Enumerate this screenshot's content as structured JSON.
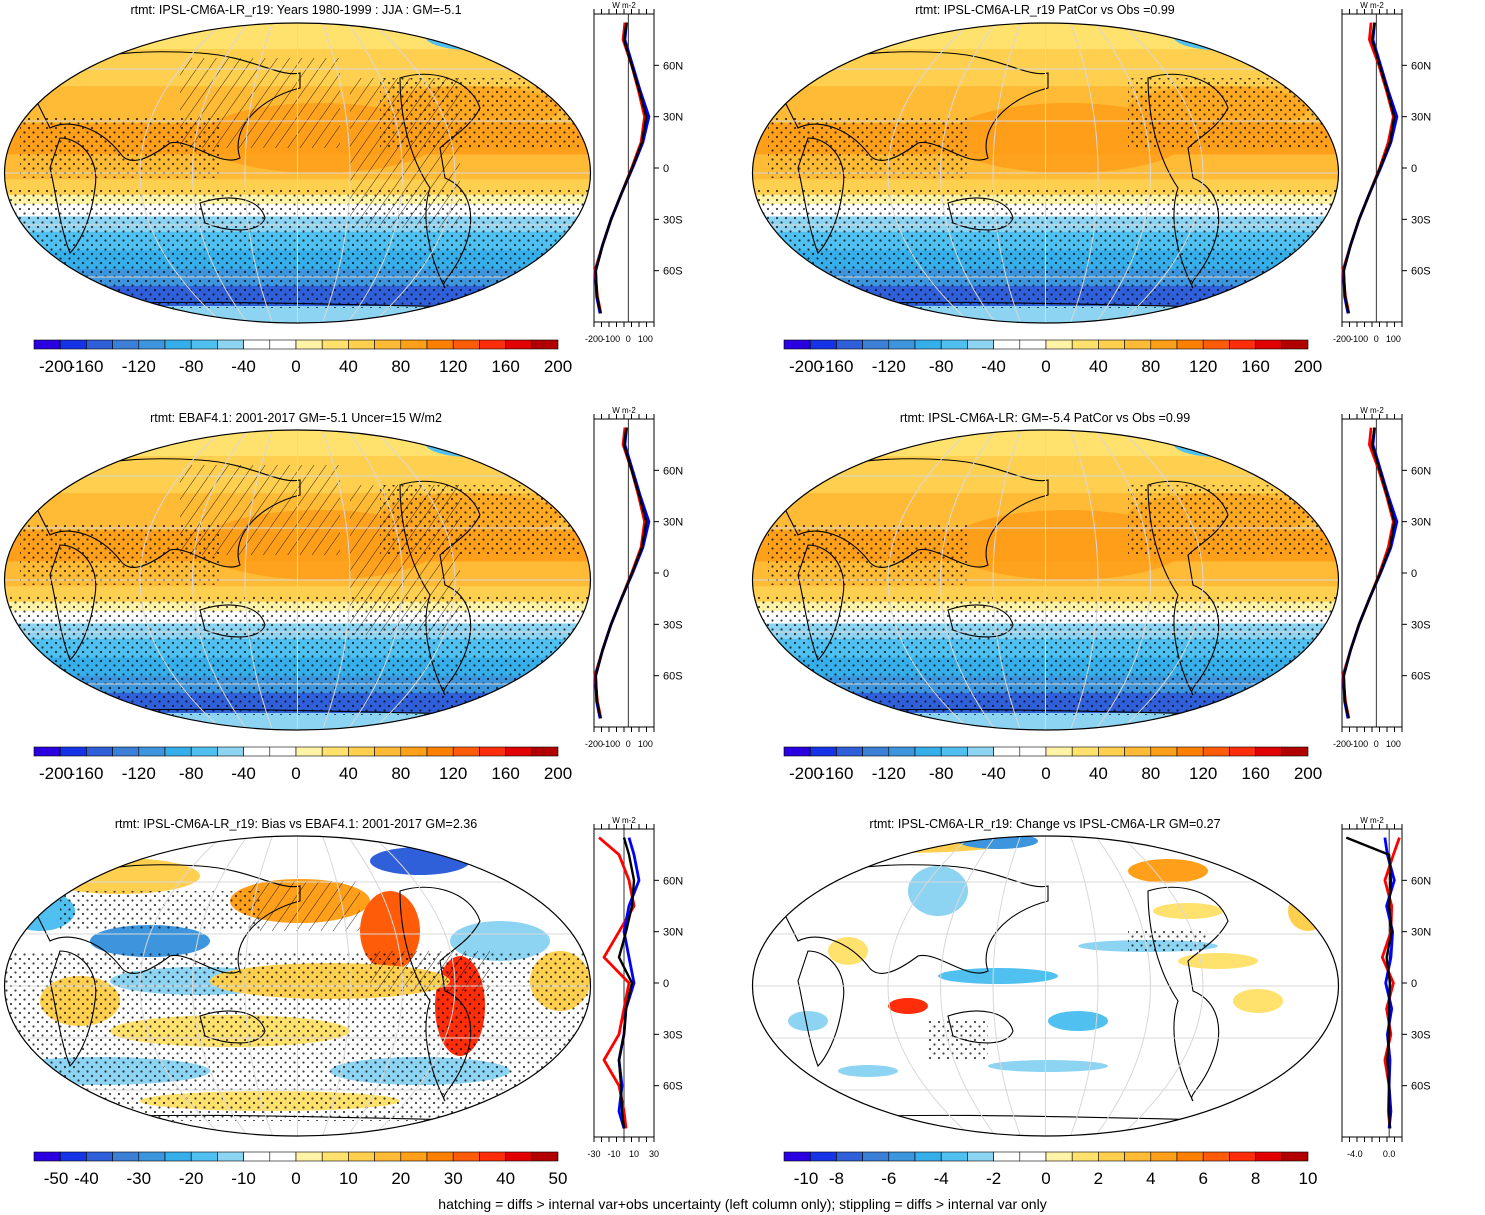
{
  "footnote": "hatching = diffs > internal var+obs uncertainty (left column only); stippling = diffs > internal var only",
  "profile_units": "W m-2",
  "profile_lat_ticks": [
    "60N",
    "30N",
    "0",
    "30S",
    "60S"
  ],
  "colors": {
    "cmap": [
      "#2b00e0",
      "#1634e6",
      "#2f5fd9",
      "#3b7fd6",
      "#3c95dd",
      "#36aee9",
      "#4fc0ef",
      "#8dd4f2",
      "#ffffff",
      "#ffffff",
      "#fff3a8",
      "#ffe16e",
      "#ffcf4f",
      "#ffbb35",
      "#ff9f1a",
      "#ff8000",
      "#ff5c0a",
      "#ff2d0a",
      "#e00000",
      "#b20000"
    ],
    "model": "#ff0000",
    "obs": "#0000ff",
    "ref": "#000000"
  },
  "panels": [
    {
      "id": "p1",
      "title": "rtmt: IPSL-CM6A-LR_r19: Years 1980-1999 : JJA : GM=-5.1",
      "kind": "abs",
      "hatching": true,
      "colorbar_labels": [
        "-200",
        "-160",
        "-120",
        "-80",
        "-40",
        "0",
        "40",
        "80",
        "120",
        "160",
        "200"
      ],
      "profile_ticks": [
        "-200",
        "-100",
        "0",
        "100"
      ]
    },
    {
      "id": "p2",
      "title": "rtmt: IPSL-CM6A-LR_r19 PatCor vs Obs =0.99",
      "kind": "abs",
      "hatching": false,
      "colorbar_labels": [
        "-200",
        "-160",
        "-120",
        "-80",
        "-40",
        "0",
        "40",
        "80",
        "120",
        "160",
        "200"
      ],
      "profile_ticks": [
        "-200",
        "-100",
        "0",
        "100"
      ]
    },
    {
      "id": "p3",
      "title": "rtmt: EBAF4.1: 2001-2017 GM=-5.1 Uncer=15 W/m2",
      "kind": "abs",
      "hatching": true,
      "colorbar_labels": [
        "-200",
        "-160",
        "-120",
        "-80",
        "-40",
        "0",
        "40",
        "80",
        "120",
        "160",
        "200"
      ],
      "profile_ticks": [
        "-200",
        "-100",
        "0",
        "100"
      ]
    },
    {
      "id": "p4",
      "title": "rtmt: IPSL-CM6A-LR: GM=-5.4 PatCor vs Obs =0.99",
      "kind": "abs",
      "hatching": false,
      "colorbar_labels": [
        "-200",
        "-160",
        "-120",
        "-80",
        "-40",
        "0",
        "40",
        "80",
        "120",
        "160",
        "200"
      ],
      "profile_ticks": [
        "-200",
        "-100",
        "0",
        "100"
      ]
    },
    {
      "id": "p5",
      "title": "rtmt: IPSL-CM6A-LR_r19: Bias vs EBAF4.1: 2001-2017 GM=2.36",
      "kind": "bias",
      "hatching": true,
      "colorbar_labels": [
        "-50",
        "-40",
        "-30",
        "-20",
        "-10",
        "0",
        "10",
        "20",
        "30",
        "40",
        "50"
      ],
      "profile_ticks": [
        "-30",
        "-10",
        "10",
        "30"
      ]
    },
    {
      "id": "p6",
      "title": "rtmt: IPSL-CM6A-LR_r19: Change vs IPSL-CM6A-LR GM=0.27",
      "kind": "change",
      "hatching": false,
      "colorbar_labels": [
        "-10",
        "-8",
        "-6",
        "-4",
        "-2",
        "0",
        "2",
        "4",
        "6",
        "8",
        "10"
      ],
      "profile_ticks": [
        "-4.0",
        "0.0"
      ]
    }
  ],
  "chart_data": [
    {
      "type": "heatmap",
      "title": "rtmt: IPSL-CM6A-LR_r19: Years 1980-1999 : JJA : GM=-5.1",
      "colorbar_range": [
        -200,
        200
      ],
      "zonal_profile": {
        "x_range": [
          -200,
          150
        ],
        "lat": [
          85,
          75,
          60,
          45,
          30,
          15,
          0,
          -15,
          -30,
          -45,
          -60,
          -75,
          -85
        ],
        "series": [
          {
            "values": [
              -20,
              -30,
              20,
              60,
              95,
              75,
              20,
              -40,
              -100,
              -150,
              -195,
              -180,
              -160
            ]
          },
          {
            "values": [
              -10,
              -20,
              25,
              70,
              120,
              85,
              25,
              -40,
              -100,
              -150,
              -190,
              -185,
              -165
            ]
          },
          {
            "values": [
              -10,
              -25,
              20,
              65,
              105,
              80,
              22,
              -40,
              -100,
              -150,
              -190,
              -182,
              -162
            ]
          }
        ]
      }
    },
    {
      "type": "heatmap",
      "title": "rtmt: IPSL-CM6A-LR_r19 PatCor vs Obs =0.99",
      "colorbar_range": [
        -200,
        200
      ],
      "zonal_profile": {
        "x_range": [
          -200,
          150
        ],
        "lat": [
          85,
          75,
          60,
          45,
          30,
          15,
          0,
          -15,
          -30,
          -45,
          -60,
          -75,
          -85
        ],
        "series": [
          {
            "values": [
              -30,
              -40,
              15,
              60,
              100,
              70,
              20,
              -40,
              -100,
              -150,
              -195,
              -180,
              -160
            ]
          },
          {
            "values": [
              -10,
              -20,
              25,
              70,
              120,
              85,
              25,
              -40,
              -100,
              -150,
              -190,
              -185,
              -165
            ]
          },
          {
            "values": [
              -10,
              -25,
              20,
              65,
              105,
              80,
              22,
              -40,
              -100,
              -150,
              -190,
              -182,
              -162
            ]
          }
        ]
      }
    },
    {
      "type": "heatmap",
      "title": "rtmt: EBAF4.1: 2001-2017 GM=-5.1 Uncer=15 W/m2",
      "colorbar_range": [
        -200,
        200
      ],
      "zonal_profile": {
        "x_range": [
          -200,
          150
        ],
        "lat": [
          85,
          75,
          60,
          45,
          30,
          15,
          0,
          -15,
          -30,
          -45,
          -60,
          -75,
          -85
        ],
        "series": [
          {
            "values": [
              -20,
              -30,
              20,
              60,
              95,
              75,
              20,
              -40,
              -100,
              -150,
              -195,
              -180,
              -160
            ]
          },
          {
            "values": [
              -10,
              -20,
              25,
              70,
              120,
              85,
              25,
              -40,
              -100,
              -150,
              -190,
              -185,
              -165
            ]
          },
          {
            "values": [
              -10,
              -25,
              20,
              65,
              105,
              80,
              22,
              -40,
              -100,
              -150,
              -190,
              -182,
              -162
            ]
          }
        ]
      }
    },
    {
      "type": "heatmap",
      "title": "rtmt: IPSL-CM6A-LR: GM=-5.4 PatCor vs Obs =0.99",
      "colorbar_range": [
        -200,
        200
      ],
      "zonal_profile": {
        "x_range": [
          -200,
          150
        ],
        "lat": [
          85,
          75,
          60,
          45,
          30,
          15,
          0,
          -15,
          -30,
          -45,
          -60,
          -75,
          -85
        ],
        "series": [
          {
            "values": [
              -30,
              -40,
              15,
              60,
              100,
              70,
              20,
              -40,
              -100,
              -150,
              -195,
              -180,
              -160
            ]
          },
          {
            "values": [
              -10,
              -20,
              25,
              70,
              120,
              85,
              25,
              -40,
              -100,
              -150,
              -190,
              -185,
              -165
            ]
          },
          {
            "values": [
              -10,
              -25,
              20,
              65,
              105,
              80,
              22,
              -40,
              -100,
              -150,
              -190,
              -182,
              -162
            ]
          }
        ]
      }
    },
    {
      "type": "heatmap",
      "title": "rtmt: IPSL-CM6A-LR_r19: Bias vs EBAF4.1: 2001-2017 GM=2.36",
      "colorbar_range": [
        -50,
        50
      ],
      "zonal_profile": {
        "x_range": [
          -30,
          30
        ],
        "lat": [
          85,
          75,
          60,
          45,
          30,
          15,
          0,
          -15,
          -30,
          -45,
          -60,
          -75,
          -85
        ],
        "series": [
          {
            "values": [
              -25,
              -5,
              5,
              10,
              -5,
              -20,
              5,
              0,
              -5,
              -20,
              -5,
              0,
              2
            ]
          },
          {
            "values": [
              5,
              10,
              15,
              5,
              0,
              5,
              10,
              2,
              0,
              -5,
              -2,
              -5,
              0
            ]
          },
          {
            "values": [
              0,
              5,
              10,
              8,
              2,
              -5,
              8,
              2,
              0,
              -5,
              -3,
              -2,
              0
            ]
          }
        ]
      }
    },
    {
      "type": "heatmap",
      "title": "rtmt: IPSL-CM6A-LR_r19: Change vs IPSL-CM6A-LR GM=0.27",
      "colorbar_range": [
        -10,
        10
      ],
      "zonal_profile": {
        "x_range": [
          -5.5,
          1.5
        ],
        "lat": [
          85,
          75,
          60,
          45,
          30,
          15,
          0,
          -15,
          -30,
          -45,
          -60,
          -75,
          -85
        ],
        "series": [
          {
            "values": [
              1.2,
              0.5,
              -0.5,
              0.3,
              0.2,
              -0.8,
              0.5,
              -0.3,
              0.2,
              -0.5,
              0.0,
              -0.1,
              0.1
            ]
          },
          {
            "values": [
              -0.5,
              -0.2,
              0.6,
              -0.3,
              0.4,
              0.2,
              -0.4,
              0.3,
              -0.2,
              0.1,
              0.0,
              0.2,
              0.0
            ]
          },
          {
            "values": [
              -5.0,
              0.0,
              0.2,
              0.0,
              0.3,
              -0.3,
              0.1,
              0.0,
              0.0,
              -0.2,
              0.0,
              0.0,
              0.1
            ]
          }
        ]
      }
    }
  ]
}
